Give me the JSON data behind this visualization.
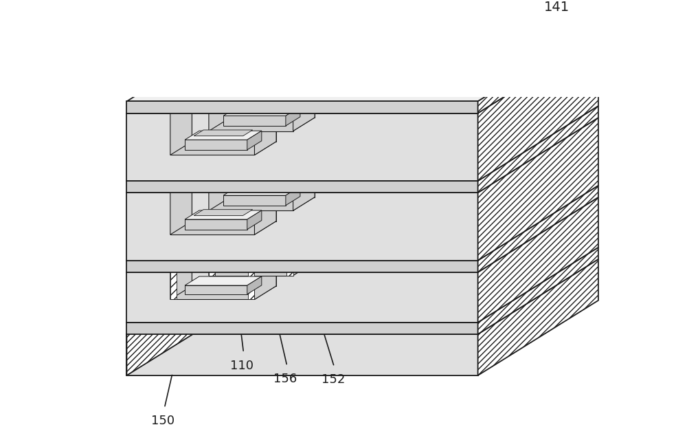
{
  "bg_color": "#ffffff",
  "line_color": "#1a1a1a",
  "face_white": "#ffffff",
  "face_light": "#f0f0f0",
  "face_gray1": "#e0e0e0",
  "face_gray2": "#d0d0d0",
  "face_dark": "#b8b8b8",
  "hatch_gray": "#c8c8c8",
  "label_141": "141",
  "label_150": "150",
  "label_110": "110",
  "label_156": "156",
  "label_152": "152",
  "font_size": 13,
  "lw_main": 1.2,
  "lw_thin": 0.8
}
